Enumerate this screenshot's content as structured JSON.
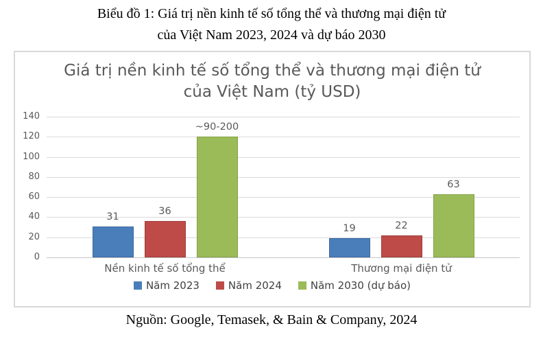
{
  "caption": {
    "line1": "Biểu đồ 1: Giá trị nền kinh tế số tổng thể và thương mại điện tử",
    "line2": "của Việt Nam 2023, 2024 và dự báo 2030"
  },
  "source": "Nguồn: Google, Temasek, & Bain & Company, 2024",
  "chart_data": {
    "type": "bar",
    "title": "Giá trị nền kinh tế số tổng thể và thương mại điện tử của Việt Nam (tỷ USD)",
    "categories": [
      "Nền kinh tế số tổng thể",
      "Thương mại điện tử"
    ],
    "series": [
      {
        "name": "Năm 2023",
        "color": "#4a7ebb",
        "border": "#3a699f",
        "values": [
          31,
          19
        ],
        "labels": [
          "31",
          "19"
        ]
      },
      {
        "name": "Năm 2024",
        "color": "#be4b48",
        "border": "#9e3d3a",
        "values": [
          36,
          22
        ],
        "labels": [
          "36",
          "22"
        ]
      },
      {
        "name": "Năm 2030 (dự báo)",
        "color": "#9bbb59",
        "border": "#83a145",
        "values": [
          120,
          63
        ],
        "labels": [
          "~90-200",
          "63"
        ]
      }
    ],
    "ylabel": "",
    "xlabel": "",
    "ylim": [
      0,
      140
    ],
    "yticks": [
      0,
      20,
      40,
      60,
      80,
      100,
      120,
      140
    ],
    "grid": true,
    "legend_position": "bottom",
    "note": "Bar for Năm 2030 in first category is drawn at 120 but labeled ~90-200"
  }
}
